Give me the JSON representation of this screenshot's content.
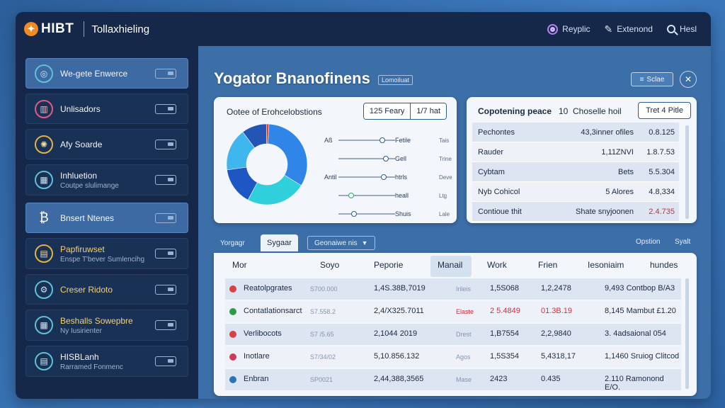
{
  "header": {
    "logo_mark": "✦",
    "logo_text": "HIBT",
    "app_title": "Tollaxhieling",
    "actions": [
      {
        "label": "Reyplic",
        "icon": "ring-icon"
      },
      {
        "label": "Extenond",
        "icon": "pen-icon"
      },
      {
        "label": "Hesl",
        "icon": "search-icon"
      }
    ]
  },
  "sidebar": {
    "items": [
      {
        "label": "We-gete Enwerce",
        "sub": "",
        "icon": "target-icon",
        "glyph": "◎",
        "active": true
      },
      {
        "label": "Unlisadors",
        "sub": "",
        "icon": "chart-icon",
        "glyph": "▥",
        "tone": "red"
      },
      {
        "label": "Afy Soarde",
        "sub": "",
        "icon": "bulb-icon",
        "glyph": "✺",
        "tone": "gold"
      },
      {
        "label": "Inhluetion",
        "sub": "Coutpe slulimange",
        "icon": "grid-icon",
        "glyph": "▦"
      },
      {
        "label": "Bnsert Ntenes",
        "sub": "",
        "icon": "bitcoin-icon",
        "glyph": "₿",
        "active": true,
        "tone": "plain"
      },
      {
        "label": "Papfiruwset",
        "sub": "Enspe T'bever Sumlencihg",
        "icon": "document-icon",
        "glyph": "▤",
        "tone": "gold",
        "gold_label": true
      },
      {
        "label": "Creser Ridoto",
        "sub": "",
        "icon": "gear-icon",
        "glyph": "⚙",
        "gold_label": true
      },
      {
        "label": "Beshalls Sowepbre",
        "sub": "Ny Iusirienter",
        "icon": "calendar-icon",
        "glyph": "▦",
        "gold_label": true
      },
      {
        "label": "HISBLanh",
        "sub": "Rarramed Fonmenc",
        "icon": "report-icon",
        "glyph": "▤"
      }
    ]
  },
  "main": {
    "title": "Yogator Bnanofinens",
    "tag": "Lomoiluat",
    "save_label": "Sclae",
    "save_icon": "≡"
  },
  "allocation_card": {
    "title": "Ootee of Erohcelobstions",
    "pills": [
      "125 Feary",
      "1/7 hat"
    ],
    "sliders": [
      {
        "lbl": "Aß",
        "name": "Fetile",
        "val": "Tais"
      },
      {
        "lbl": "",
        "name": "Gell",
        "val": "Trine"
      },
      {
        "lbl": "Antil",
        "name": "htrls",
        "val": "Deve"
      },
      {
        "lbl": "",
        "name": "heall",
        "val": "Ltg"
      },
      {
        "lbl": "",
        "name": "Shuis",
        "val": "Lale"
      }
    ]
  },
  "chart_data": {
    "type": "pie",
    "values": [
      33,
      24,
      15,
      17,
      10,
      1
    ],
    "colors": [
      "#2f86e8",
      "#2fd0dc",
      "#1c57c4",
      "#3fb7ee",
      "#2455b5",
      "#e0412f"
    ]
  },
  "summary_card": {
    "title": "Copotening peace",
    "count": "10",
    "subtitle": "Choselle hoil",
    "button": "Tret 4 Pitle",
    "rows": [
      {
        "name": "Pechontes",
        "mid": "43,3inner ofiles",
        "val": "0.8.125"
      },
      {
        "name": "Rauder",
        "mid": "1,11ZNVI",
        "val": "1.8.7.53"
      },
      {
        "name": "Cybtam",
        "mid": "Bets",
        "val": "5.5.304"
      },
      {
        "name": "Nyb Cohicol",
        "mid": "5 Alores",
        "val": "4.8,334"
      },
      {
        "name": "Contioue thit",
        "mid": "Shate snyjoonen",
        "val": "2.4.735",
        "red": true
      }
    ]
  },
  "tabs": {
    "items": [
      "Yorgagr",
      "Sygaar",
      "Geonaiwe nis"
    ],
    "dropdown_icon": "▼",
    "right": [
      "Opstion",
      "Syalt"
    ]
  },
  "grid": {
    "headers": [
      "Mor",
      "Soyo",
      "Peporie",
      "Manail",
      "Work",
      "Frien",
      "Iesoniaim",
      "hundes"
    ],
    "rows": [
      {
        "dot": "#d64141",
        "name": "Reatolpgrates",
        "tiny": "S700.000",
        "c3": "1,4S.38B,7019",
        "c4": "Irileis",
        "c5": "1,5S068",
        "c6": "1,2,2478",
        "c7": "9,493 Contbop B/A3"
      },
      {
        "dot": "#2e9a4c",
        "name": "Contatlationsarct",
        "tiny": "S7.558.2",
        "c3": "2,4/X325.7011",
        "c4": "Elaste",
        "c5": "2 5.4849",
        "c6": "01.3B.19",
        "c7": "8,145 Mambut £1.20",
        "red": true
      },
      {
        "dot": "#d64141",
        "name": "Verlibocots",
        "tiny": "S7 /5.65",
        "c3": "2,1044 2019",
        "c4": "Drest",
        "c5": "1,B7554",
        "c6": "2,2,9840",
        "c7": "3. 4adsaional 054"
      },
      {
        "dot": "#cf3b5b",
        "name": "Inotlare",
        "tiny": "S7/34/02",
        "c3": "5,10.856.132",
        "c4": "Agos",
        "c5": "1,5S354",
        "c6": "5,4318,17",
        "c7": "1,1460 Sruiog Clitcod"
      },
      {
        "dot": "#2d73b8",
        "name": "Enbran",
        "tiny": "SP0021",
        "c3": "2,44,388,3565",
        "c4": "Mase",
        "c5": "2423",
        "c6": "0.435",
        "c7": "2.110 Ramonond E/O."
      }
    ]
  }
}
